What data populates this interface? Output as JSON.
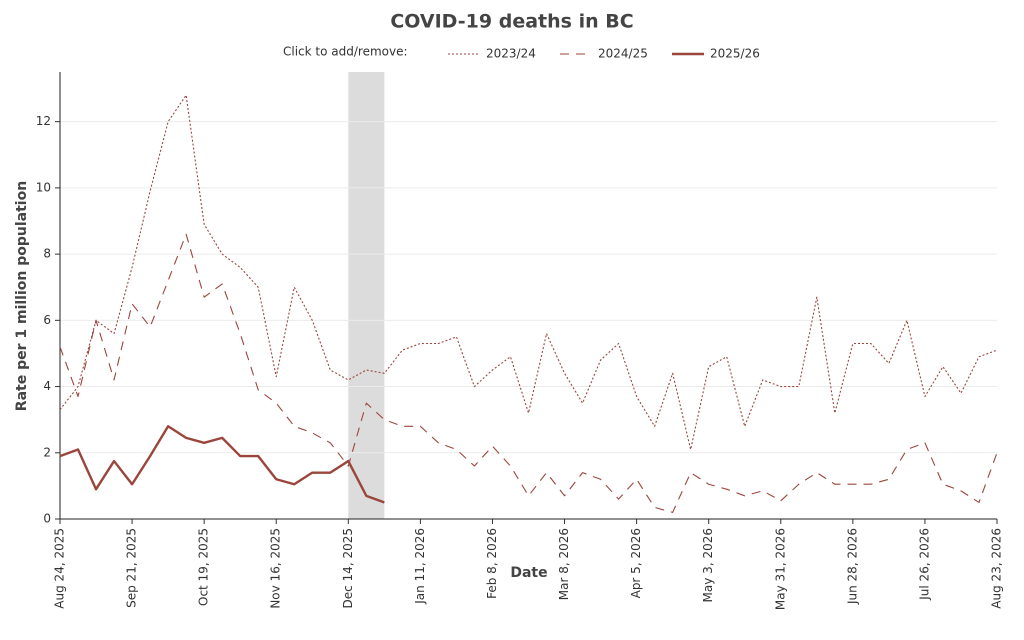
{
  "chart_data": {
    "type": "line",
    "title": "COVID-19 deaths in BC",
    "legend_title": "Click to add/remove:",
    "x_label": "Date",
    "y_label": "Rate per 1 million population",
    "x": [
      "2025-08-24",
      "2025-08-31",
      "2025-09-07",
      "2025-09-14",
      "2025-09-21",
      "2025-09-28",
      "2025-10-05",
      "2025-10-12",
      "2025-10-19",
      "2025-10-26",
      "2025-11-02",
      "2025-11-09",
      "2025-11-16",
      "2025-11-23",
      "2025-11-30",
      "2025-12-07",
      "2025-12-14",
      "2025-12-21",
      "2025-12-28",
      "2026-01-04",
      "2026-01-11",
      "2026-01-18",
      "2026-01-25",
      "2026-02-01",
      "2026-02-08",
      "2026-02-15",
      "2026-02-22",
      "2026-03-01",
      "2026-03-08",
      "2026-03-15",
      "2026-03-22",
      "2026-03-29",
      "2026-04-05",
      "2026-04-12",
      "2026-04-19",
      "2026-04-26",
      "2026-05-03",
      "2026-05-10",
      "2026-05-17",
      "2026-05-24",
      "2026-05-31",
      "2026-06-07",
      "2026-06-14",
      "2026-06-21",
      "2026-06-28",
      "2026-07-05",
      "2026-07-12",
      "2026-07-19",
      "2026-07-26",
      "2026-08-02",
      "2026-08-09",
      "2026-08-16",
      "2026-08-23"
    ],
    "series": [
      {
        "name": "2023/24",
        "color": "#9b463c",
        "dash": "dotted",
        "values": [
          3.3,
          4.0,
          6.0,
          5.6,
          7.6,
          9.9,
          12.0,
          12.8,
          8.9,
          8.0,
          7.6,
          7.0,
          4.3,
          7.0,
          6.0,
          4.5,
          4.2,
          4.5,
          4.4,
          5.1,
          5.3,
          5.3,
          5.5,
          4.0,
          4.5,
          4.9,
          3.2,
          5.6,
          4.4,
          3.5,
          4.8,
          5.3,
          3.7,
          2.8,
          4.4,
          2.1,
          4.6,
          4.9,
          2.8,
          4.2,
          4.0,
          4.0,
          6.7,
          3.2,
          5.3,
          5.3,
          4.7,
          6.0,
          3.7,
          4.6,
          3.8,
          4.9,
          5.1
        ]
      },
      {
        "name": "2024/25",
        "color": "#9b463c",
        "dash": "dashed",
        "values": [
          5.2,
          3.7,
          6.0,
          4.2,
          6.5,
          5.8,
          7.2,
          8.6,
          6.7,
          7.1,
          5.6,
          3.9,
          3.5,
          2.8,
          2.6,
          2.3,
          1.6,
          3.5,
          3.0,
          2.8,
          2.8,
          2.3,
          2.1,
          1.6,
          2.2,
          1.6,
          0.7,
          1.4,
          0.7,
          1.4,
          1.2,
          0.6,
          1.2,
          0.35,
          0.2,
          1.4,
          1.05,
          0.9,
          0.7,
          0.85,
          0.55,
          1.05,
          1.4,
          1.05,
          1.05,
          1.05,
          1.2,
          2.1,
          2.3,
          1.05,
          0.85,
          0.5,
          2.0
        ]
      },
      {
        "name": "2025/26",
        "color": "#9b463c",
        "dash": "solid",
        "values": [
          1.9,
          2.1,
          0.9,
          1.75,
          1.05,
          1.9,
          2.8,
          2.45,
          2.3,
          2.45,
          1.9,
          1.9,
          1.2,
          1.05,
          1.4,
          1.4,
          1.75,
          0.7,
          0.5,
          null,
          null,
          null,
          null,
          null,
          null,
          null,
          null,
          null,
          null,
          null,
          null,
          null,
          null,
          null,
          null,
          null,
          null,
          null,
          null,
          null,
          null,
          null,
          null,
          null,
          null,
          null,
          null,
          null,
          null,
          null,
          null,
          null,
          null
        ]
      }
    ],
    "shaded_region": [
      "2025-12-14",
      "2025-12-28"
    ],
    "xlim": [
      "2025-08-24",
      "2026-08-23"
    ],
    "xticks": [
      {
        "value": "2025-08-24",
        "label": "Aug 24, 2025"
      },
      {
        "value": "2025-09-21",
        "label": "Sep 21, 2025"
      },
      {
        "value": "2025-10-19",
        "label": "Oct 19, 2025"
      },
      {
        "value": "2025-11-16",
        "label": "Nov 16, 2025"
      },
      {
        "value": "2025-12-14",
        "label": "Dec 14, 2025"
      },
      {
        "value": "2026-01-11",
        "label": "Jan 11, 2026"
      },
      {
        "value": "2026-02-08",
        "label": "Feb 8, 2026"
      },
      {
        "value": "2026-03-08",
        "label": "Mar 8, 2026"
      },
      {
        "value": "2026-04-05",
        "label": "Apr 5, 2026"
      },
      {
        "value": "2026-05-03",
        "label": "May 3, 2026"
      },
      {
        "value": "2026-05-31",
        "label": "May 31, 2026"
      },
      {
        "value": "2026-06-28",
        "label": "Jun 28, 2026"
      },
      {
        "value": "2026-07-26",
        "label": "Jul 26, 2026"
      },
      {
        "value": "2026-08-23",
        "label": "Aug 23, 2026"
      }
    ],
    "ylim": [
      0,
      13.5
    ],
    "yticks": [
      0,
      2,
      4,
      6,
      8,
      10,
      12
    ],
    "grid": true
  }
}
